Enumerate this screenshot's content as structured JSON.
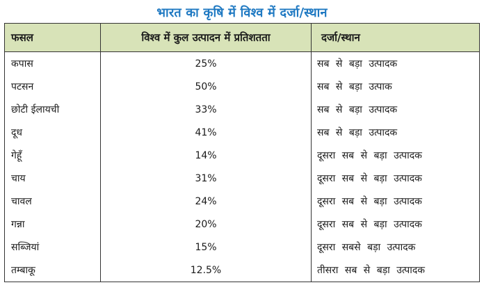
{
  "page": {
    "title": "भारत का कृषि में विश्व में दर्जा/स्थान"
  },
  "table": {
    "headers": {
      "crop": "फसल",
      "percentage": "विश्व में कुल उत्पादन में प्रतिशतता",
      "rank": "दर्जा/स्थान"
    },
    "rows": [
      {
        "crop": "कपास",
        "percentage": "25%",
        "rank": "सब से बड़ा उत्पादक"
      },
      {
        "crop": "पटसन",
        "percentage": "50%",
        "rank": "सब से बड़ा उत्पाक"
      },
      {
        "crop": "छोटी ईलायची",
        "percentage": "33%",
        "rank": "सब से बड़ा उत्पादक"
      },
      {
        "crop": "दूध",
        "percentage": "41%",
        "rank": "सब से बड़ा उत्पादक"
      },
      {
        "crop": "गेहूँ",
        "percentage": "14%",
        "rank": "दूसरा सब से बड़ा उत्पादक"
      },
      {
        "crop": "चाय",
        "percentage": "31%",
        "rank": "दूसरा सब से बड़ा उत्पादक"
      },
      {
        "crop": "चावल",
        "percentage": "24%",
        "rank": "दूसरा सब से बड़ा उत्पादक"
      },
      {
        "crop": "गन्ना",
        "percentage": "20%",
        "rank": "दूसरा सब से बड़ा उत्पादक"
      },
      {
        "crop": "सब्जियां",
        "percentage": "15%",
        "rank": "दूसरा सबसे बड़ा उत्पादक"
      },
      {
        "crop": "तम्बाकू",
        "percentage": "12.5%",
        "rank": "तीसरा सब से बड़ा उत्पादक"
      }
    ]
  },
  "colors": {
    "title": "#1f79c2",
    "header_background": "#d8e3b8",
    "border": "#333333"
  }
}
